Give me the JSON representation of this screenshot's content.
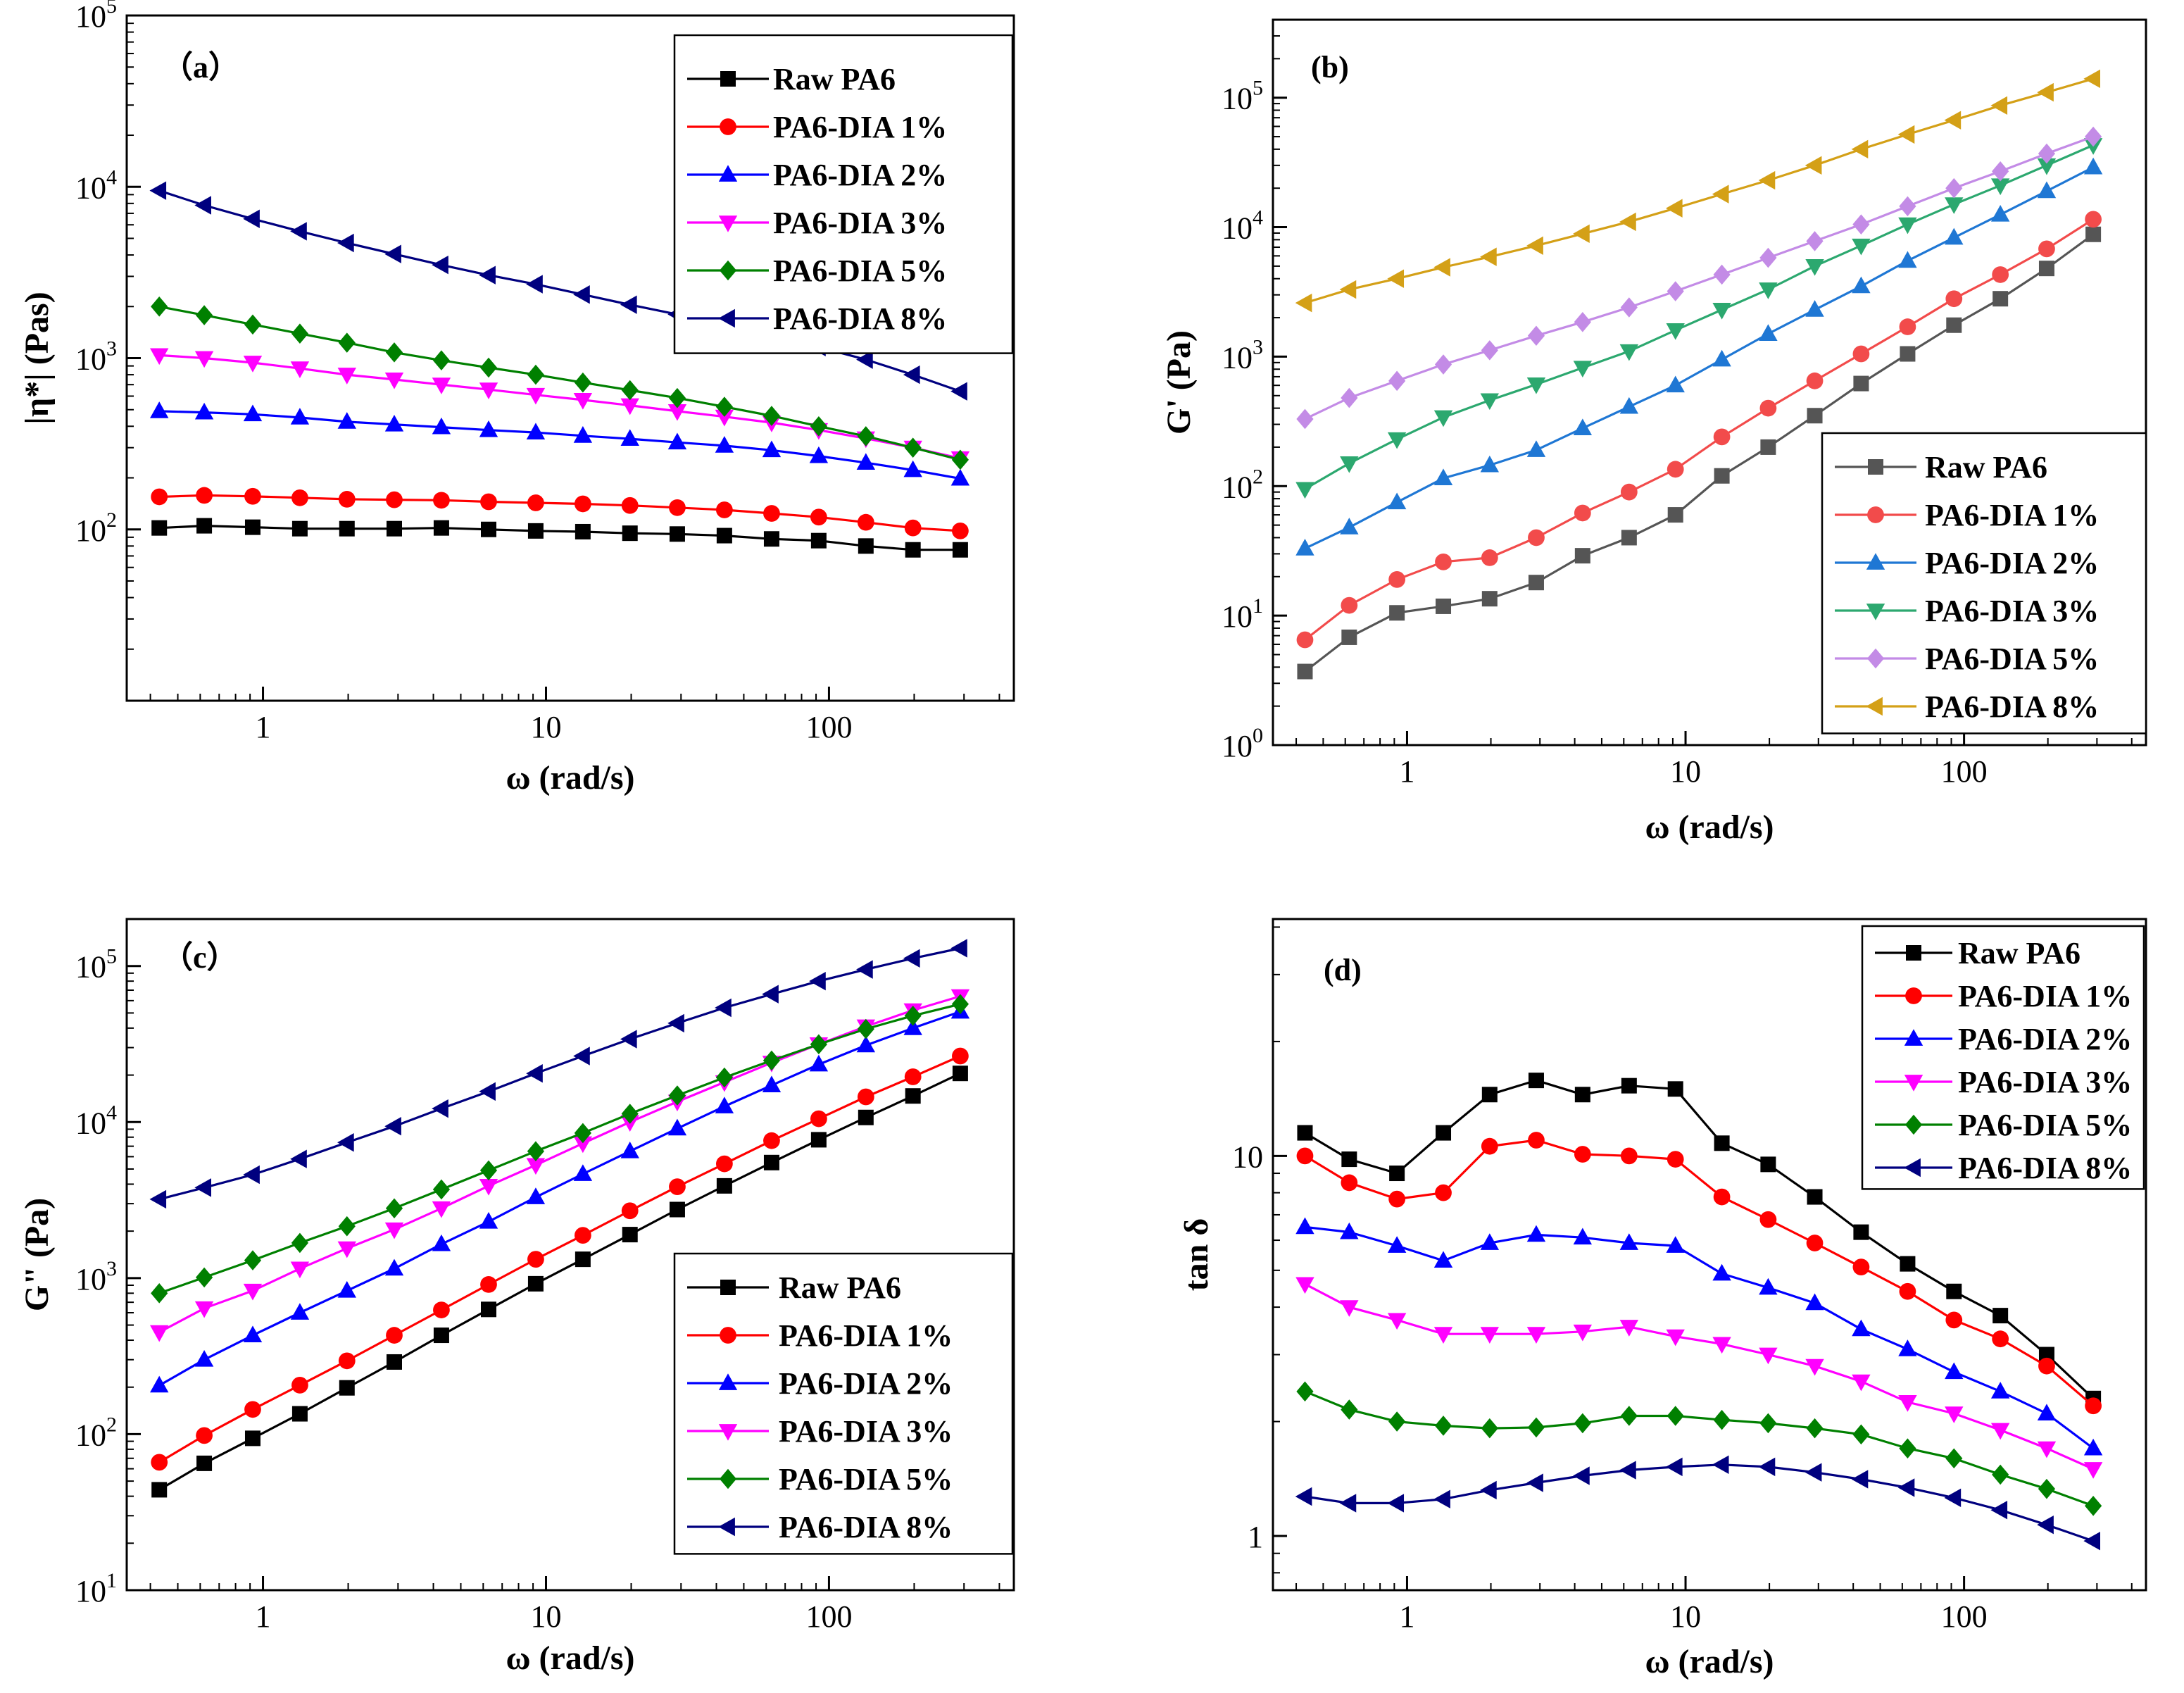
{
  "figure": {
    "colors": {
      "black": "#000000",
      "red": "#ff0000",
      "blue": "#0000ff",
      "magenta": "#ff00ff",
      "green": "#008000",
      "navy": "#00007f",
      "b_gray": "#555555",
      "b_red": "#f24b4b",
      "b_blue": "#1f77d4",
      "b_green": "#2ca86f",
      "b_purple": "#c38be6",
      "b_gold": "#d4a017"
    }
  },
  "chart_data": [
    {
      "id": "a",
      "type": "line",
      "panel_label": "（a）",
      "title": "",
      "xlabel": "ω (rad/s)",
      "ylabel": "|η*| (Pas)",
      "xscale": "log",
      "yscale": "log",
      "xlim": [
        0.33,
        450
      ],
      "ylim": [
        10,
        100000
      ],
      "x_ticks": [
        {
          "value": 1,
          "label": "1"
        },
        {
          "value": 10,
          "label": "10"
        },
        {
          "value": 100,
          "label": "100"
        }
      ],
      "y_ticks": [
        {
          "value": 100,
          "base": "10",
          "exp": "2"
        },
        {
          "value": 1000,
          "base": "10",
          "exp": "3"
        },
        {
          "value": 10000,
          "base": "10",
          "exp": "4"
        },
        {
          "value": 100000,
          "base": "10",
          "exp": "5"
        }
      ],
      "legend_position": "top-right",
      "x": [
        0.43,
        0.62,
        0.92,
        1.35,
        1.98,
        2.91,
        4.27,
        6.27,
        9.2,
        13.5,
        19.8,
        29.1,
        42.7,
        62.7,
        92,
        135,
        198,
        291
      ],
      "series": [
        {
          "name": "Raw PA6",
          "color": "#000000",
          "marker": "square",
          "values": [
            102,
            105,
            103,
            101,
            101,
            101,
            102,
            100,
            98,
            97,
            95,
            94,
            92,
            88,
            86,
            80,
            76,
            76
          ]
        },
        {
          "name": "PA6-DIA 1%",
          "color": "#ff0000",
          "marker": "circle",
          "values": [
            155,
            158,
            156,
            153,
            150,
            149,
            148,
            145,
            143,
            141,
            138,
            134,
            130,
            124,
            118,
            110,
            102,
            98
          ]
        },
        {
          "name": "PA6-DIA 2%",
          "color": "#0000ff",
          "marker": "triangle-up",
          "values": [
            490,
            482,
            470,
            450,
            425,
            410,
            395,
            380,
            368,
            352,
            338,
            322,
            308,
            290,
            268,
            245,
            222,
            198
          ]
        },
        {
          "name": "PA6-DIA 3%",
          "color": "#ff00ff",
          "marker": "triangle-down",
          "values": [
            1040,
            1000,
            940,
            870,
            800,
            750,
            700,
            655,
            610,
            570,
            530,
            490,
            455,
            420,
            380,
            340,
            300,
            260
          ]
        },
        {
          "name": "PA6-DIA 5%",
          "color": "#008000",
          "marker": "diamond",
          "values": [
            2000,
            1780,
            1570,
            1390,
            1230,
            1080,
            970,
            880,
            800,
            720,
            650,
            585,
            520,
            460,
            400,
            350,
            300,
            255
          ]
        },
        {
          "name": "PA6-DIA 8%",
          "color": "#00007f",
          "marker": "triangle-left",
          "values": [
            9500,
            7800,
            6500,
            5500,
            4700,
            4050,
            3500,
            3050,
            2700,
            2350,
            2050,
            1800,
            1570,
            1360,
            1160,
            980,
            800,
            640
          ]
        }
      ]
    },
    {
      "id": "b",
      "type": "line",
      "panel_label": "(b)",
      "title": "",
      "xlabel": "ω (rad/s)",
      "ylabel": "G' (Pa)",
      "xscale": "log",
      "yscale": "log",
      "xlim": [
        0.33,
        450
      ],
      "ylim": [
        1,
        400000
      ],
      "x_ticks": [
        {
          "value": 1,
          "label": "1"
        },
        {
          "value": 10,
          "label": "10"
        },
        {
          "value": 100,
          "label": "100"
        }
      ],
      "y_ticks": [
        {
          "value": 1,
          "base": "10",
          "exp": "0"
        },
        {
          "value": 10,
          "base": "10",
          "exp": "1"
        },
        {
          "value": 100,
          "base": "10",
          "exp": "2"
        },
        {
          "value": 1000,
          "base": "10",
          "exp": "3"
        },
        {
          "value": 10000,
          "base": "10",
          "exp": "4"
        },
        {
          "value": 100000,
          "base": "10",
          "exp": "5"
        }
      ],
      "legend_position": "bottom-right",
      "x": [
        0.43,
        0.62,
        0.92,
        1.35,
        1.98,
        2.91,
        4.27,
        6.27,
        9.2,
        13.5,
        19.8,
        29.1,
        42.7,
        62.7,
        92,
        135,
        198,
        291
      ],
      "series": [
        {
          "name": "Raw PA6",
          "color": "#555555",
          "marker": "square",
          "values": [
            3.7,
            6.8,
            10.5,
            11.8,
            13.5,
            18,
            29,
            40,
            60,
            120,
            200,
            350,
            620,
            1050,
            1750,
            2800,
            4800,
            8800
          ]
        },
        {
          "name": "PA6-DIA 1%",
          "color": "#f24b4b",
          "marker": "circle",
          "values": [
            6.5,
            12,
            19,
            26,
            28,
            40,
            62,
            90,
            135,
            240,
            400,
            650,
            1050,
            1700,
            2800,
            4300,
            6800,
            11500
          ]
        },
        {
          "name": " PA6-DIA 2%",
          "color": "#1f77d4",
          "marker": "triangle-up",
          "values": [
            33,
            48,
            75,
            115,
            145,
            190,
            280,
            410,
            600,
            950,
            1500,
            2300,
            3500,
            5500,
            8300,
            12500,
            19000,
            29000
          ]
        },
        {
          "name": "PA6-DIA 3%",
          "color": "#2ca86f",
          "marker": "triangle-down",
          "values": [
            95,
            150,
            230,
            340,
            460,
            610,
            820,
            1100,
            1600,
            2300,
            3300,
            5000,
            7200,
            10500,
            15000,
            21000,
            30000,
            43000
          ]
        },
        {
          "name": "PA6-DIA 5%",
          "color": "#c38be6",
          "marker": "diamond",
          "values": [
            330,
            480,
            650,
            870,
            1120,
            1450,
            1850,
            2400,
            3200,
            4300,
            5800,
            7800,
            10500,
            14500,
            20000,
            27000,
            37000,
            50000
          ]
        },
        {
          "name": "PA6-DIA 8%",
          "color": "#d4a017",
          "marker": "triangle-left",
          "values": [
            2600,
            3300,
            4000,
            4900,
            5900,
            7200,
            8900,
            11000,
            14000,
            18000,
            23000,
            30000,
            40000,
            52000,
            67000,
            87000,
            110000,
            140000
          ]
        }
      ]
    },
    {
      "id": "c",
      "type": "line",
      "panel_label": "（c）",
      "title": "",
      "xlabel": "ω (rad/s)",
      "ylabel": "G\" (Pa)",
      "xscale": "log",
      "yscale": "log",
      "xlim": [
        0.33,
        450
      ],
      "ylim": [
        10,
        200000
      ],
      "x_ticks": [
        {
          "value": 1,
          "label": "1"
        },
        {
          "value": 10,
          "label": "10"
        },
        {
          "value": 100,
          "label": "100"
        }
      ],
      "y_ticks": [
        {
          "value": 10,
          "base": "10",
          "exp": "1"
        },
        {
          "value": 100,
          "base": "10",
          "exp": "2"
        },
        {
          "value": 1000,
          "base": "10",
          "exp": "3"
        },
        {
          "value": 10000,
          "base": "10",
          "exp": "4"
        },
        {
          "value": 100000,
          "base": "10",
          "exp": "5"
        }
      ],
      "legend_position": "bottom-right",
      "x": [
        0.43,
        0.62,
        0.92,
        1.35,
        1.98,
        2.91,
        4.27,
        6.27,
        9.2,
        13.5,
        19.8,
        29.1,
        42.7,
        62.7,
        92,
        135,
        198,
        291
      ],
      "series": [
        {
          "name": "Raw PA6",
          "color": "#000000",
          "marker": "square",
          "values": [
            44,
            65,
            94,
            135,
            198,
            290,
            430,
            630,
            920,
            1320,
            1900,
            2750,
            3900,
            5500,
            7700,
            10700,
            14700,
            20500
          ]
        },
        {
          "name": "PA6-DIA 1%",
          "color": "#ff0000",
          "marker": "circle",
          "values": [
            66,
            98,
            144,
            206,
            295,
            430,
            625,
            910,
            1320,
            1880,
            2700,
            3850,
            5400,
            7600,
            10500,
            14500,
            19500,
            26500
          ]
        },
        {
          "name": "PA6-DIA 2%",
          "color": "#0000ff",
          "marker": "triangle-up",
          "values": [
            205,
            300,
            430,
            600,
            830,
            1150,
            1650,
            2300,
            3300,
            4650,
            6500,
            9100,
            12600,
            17200,
            23400,
            31000,
            40000,
            51000
          ]
        },
        {
          "name": "PA6-DIA 3%",
          "color": "#ff00ff",
          "marker": "triangle-down",
          "values": [
            450,
            640,
            830,
            1150,
            1550,
            2050,
            2800,
            3900,
            5300,
            7300,
            10000,
            13500,
            18000,
            24000,
            31500,
            41000,
            52000,
            64000
          ]
        },
        {
          "name": "PA6-DIA 5%",
          "color": "#008000",
          "marker": "diamond",
          "values": [
            800,
            1010,
            1300,
            1680,
            2150,
            2800,
            3700,
            4900,
            6500,
            8500,
            11300,
            14800,
            19300,
            24800,
            31500,
            39500,
            48000,
            57000
          ]
        },
        {
          "name": "PA6-DIA 8%",
          "color": "#00007f",
          "marker": "triangle-left",
          "values": [
            3200,
            3800,
            4600,
            5800,
            7400,
            9400,
            12200,
            15700,
            20500,
            26500,
            34000,
            43000,
            54000,
            66000,
            80000,
            95000,
            112000,
            130000
          ]
        }
      ]
    },
    {
      "id": "d",
      "type": "line",
      "panel_label": "(d)",
      "title": "",
      "xlabel": "ω (rad/s)",
      "ylabel": "tan δ",
      "xscale": "log",
      "yscale": "log",
      "xlim": [
        0.33,
        450
      ],
      "ylim": [
        0.72,
        42
      ],
      "x_ticks": [
        {
          "value": 1,
          "label": "1"
        },
        {
          "value": 10,
          "label": "10"
        },
        {
          "value": 100,
          "label": "100"
        }
      ],
      "y_ticks": [
        {
          "value": 1,
          "label": "1"
        },
        {
          "value": 10,
          "label": "10"
        }
      ],
      "legend_position": "top-right",
      "x": [
        0.43,
        0.62,
        0.92,
        1.35,
        1.98,
        2.91,
        4.27,
        6.27,
        9.2,
        13.5,
        19.8,
        29.1,
        42.7,
        62.7,
        92,
        135,
        198,
        291
      ],
      "series": [
        {
          "name": "Raw PA6",
          "color": "#000000",
          "marker": "square",
          "values": [
            11.5,
            9.8,
            9.0,
            11.5,
            14.5,
            15.8,
            14.5,
            15.3,
            15.0,
            10.8,
            9.5,
            7.8,
            6.3,
            5.2,
            4.4,
            3.8,
            3.0,
            2.3
          ]
        },
        {
          "name": "PA6-DIA 1%",
          "color": "#ff0000",
          "marker": "circle",
          "values": [
            10.0,
            8.5,
            7.7,
            8.0,
            10.6,
            11.0,
            10.1,
            10.0,
            9.8,
            7.8,
            6.8,
            5.9,
            5.1,
            4.4,
            3.7,
            3.3,
            2.8,
            2.2
          ]
        },
        {
          "name": "PA6-DIA 2%",
          "color": "#0000ff",
          "marker": "triangle-up",
          "values": [
            6.5,
            6.3,
            5.8,
            5.3,
            5.9,
            6.2,
            6.1,
            5.9,
            5.8,
            4.9,
            4.5,
            4.1,
            3.5,
            3.1,
            2.7,
            2.4,
            2.1,
            1.7
          ]
        },
        {
          "name": "PA6-DIA 3%",
          "color": "#ff00ff",
          "marker": "triangle-down",
          "values": [
            4.6,
            4.0,
            3.7,
            3.4,
            3.4,
            3.4,
            3.45,
            3.55,
            3.35,
            3.2,
            3.0,
            2.8,
            2.55,
            2.25,
            2.1,
            1.9,
            1.7,
            1.5
          ]
        },
        {
          "name": "PA6-DIA 5%",
          "color": "#008000",
          "marker": "diamond",
          "values": [
            2.4,
            2.15,
            2.0,
            1.95,
            1.92,
            1.93,
            1.98,
            2.07,
            2.07,
            2.02,
            1.98,
            1.92,
            1.85,
            1.7,
            1.6,
            1.45,
            1.33,
            1.2
          ]
        },
        {
          "name": "PA6-DIA 8%",
          "color": "#00007f",
          "marker": "triangle-left",
          "values": [
            1.27,
            1.22,
            1.22,
            1.25,
            1.32,
            1.38,
            1.44,
            1.49,
            1.52,
            1.54,
            1.52,
            1.47,
            1.41,
            1.34,
            1.26,
            1.17,
            1.07,
            0.97
          ]
        }
      ]
    }
  ]
}
